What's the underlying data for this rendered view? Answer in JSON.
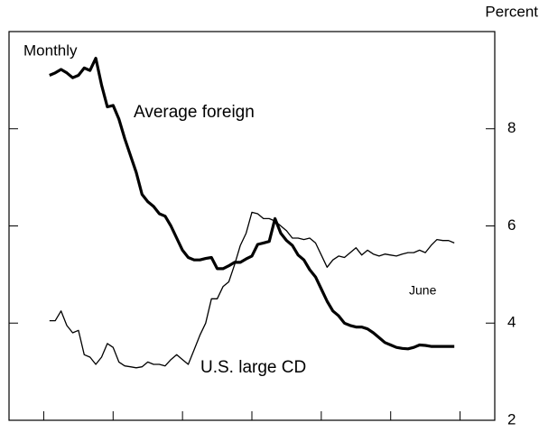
{
  "chart_data": {
    "type": "line",
    "ylabel": "Percent",
    "annotations": [
      "Monthly",
      "June"
    ],
    "x": [
      1,
      2,
      3,
      4,
      5,
      6,
      7,
      8,
      9,
      10,
      11,
      12,
      13,
      14,
      15,
      16,
      17,
      18,
      19,
      20,
      21,
      22,
      23,
      24,
      25,
      26,
      27,
      28,
      29,
      30,
      31,
      32,
      33,
      34,
      35,
      36,
      37,
      38,
      39,
      40,
      41,
      42,
      43,
      44,
      45,
      46,
      47,
      48,
      49,
      50,
      51,
      52,
      53,
      54,
      55,
      56,
      57,
      58,
      59,
      60,
      61,
      62,
      63,
      64,
      65,
      66,
      67,
      68,
      69,
      70,
      71
    ],
    "series": [
      {
        "name": "Average foreign",
        "color": "#000000",
        "values": [
          9.1,
          9.15,
          9.22,
          9.15,
          9.05,
          9.1,
          9.25,
          9.2,
          9.45,
          8.9,
          8.45,
          8.48,
          8.2,
          7.8,
          7.45,
          7.1,
          6.65,
          6.5,
          6.4,
          6.25,
          6.2,
          6.0,
          5.75,
          5.5,
          5.35,
          5.3,
          5.3,
          5.33,
          5.35,
          5.12,
          5.12,
          5.18,
          5.25,
          5.25,
          5.32,
          5.38,
          5.62,
          5.65,
          5.68,
          6.15,
          5.85,
          5.7,
          5.6,
          5.4,
          5.3,
          5.1,
          4.95,
          4.7,
          4.45,
          4.25,
          4.15,
          4.0,
          3.95,
          3.92,
          3.92,
          3.88,
          3.8,
          3.7,
          3.6,
          3.55,
          3.5,
          3.48,
          3.47,
          3.5,
          3.55,
          3.54,
          3.52,
          3.52,
          3.52,
          3.52,
          3.52
        ]
      },
      {
        "name": "U.S. large CD",
        "color": "#000000",
        "values": [
          4.05,
          4.05,
          4.25,
          3.95,
          3.8,
          3.85,
          3.35,
          3.3,
          3.15,
          3.3,
          3.58,
          3.5,
          3.2,
          3.12,
          3.1,
          3.08,
          3.1,
          3.2,
          3.15,
          3.15,
          3.12,
          3.25,
          3.35,
          3.25,
          3.15,
          3.45,
          3.75,
          4.0,
          4.5,
          4.5,
          4.75,
          4.85,
          5.2,
          5.6,
          5.85,
          6.28,
          6.25,
          6.15,
          6.15,
          6.1,
          6.0,
          5.9,
          5.75,
          5.75,
          5.72,
          5.75,
          5.65,
          5.4,
          5.15,
          5.3,
          5.38,
          5.35,
          5.45,
          5.55,
          5.4,
          5.5,
          5.42,
          5.38,
          5.42,
          5.4,
          5.38,
          5.42,
          5.45,
          5.45,
          5.5,
          5.45,
          5.6,
          5.72,
          5.7,
          5.7,
          5.65
        ]
      }
    ],
    "xlim": [
      -6,
      78
    ],
    "xticks": [
      0,
      12,
      24,
      36,
      48,
      60,
      72
    ],
    "ylim": [
      2,
      10
    ],
    "yticks": [
      2,
      4,
      6,
      8
    ]
  }
}
